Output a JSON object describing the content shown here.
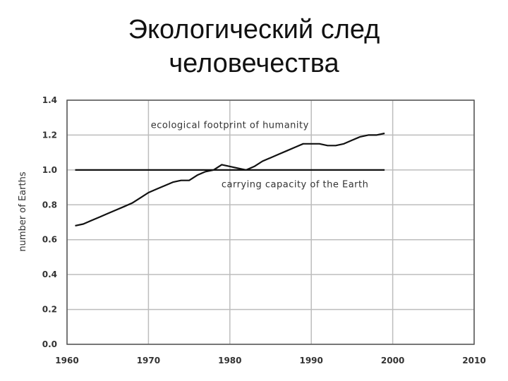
{
  "slide": {
    "title_line1": "Экологический след",
    "title_line2": "человечества"
  },
  "chart_data": {
    "type": "line",
    "title": "",
    "xlabel": "",
    "ylabel": "number of Earths",
    "xlim": [
      1960,
      2010
    ],
    "ylim": [
      0.0,
      1.4
    ],
    "x_ticks": [
      "1960",
      "1970",
      "1980",
      "1990",
      "2000",
      "2010"
    ],
    "y_ticks": [
      "0.0",
      "0.2",
      "0.4",
      "0.6",
      "0.8",
      "1.0",
      "1.2",
      "1.4"
    ],
    "grid": true,
    "annotations": [
      {
        "text": "ecological footprint of humanity",
        "x": 1980,
        "y": 1.24
      },
      {
        "text": "carrying capacity of the Earth",
        "x": 1988,
        "y": 0.9
      }
    ],
    "series": [
      {
        "x": [
          1961,
          1962,
          1963,
          1964,
          1965,
          1966,
          1967,
          1968,
          1969,
          1970,
          1971,
          1972,
          1973,
          1974,
          1975,
          1976,
          1977,
          1978,
          1979,
          1980,
          1981,
          1982,
          1983,
          1984,
          1985,
          1986,
          1987,
          1988,
          1989,
          1990,
          1991,
          1992,
          1993,
          1994,
          1995,
          1996,
          1997,
          1998,
          1999
        ],
        "y": [
          0.68,
          0.69,
          0.71,
          0.73,
          0.75,
          0.77,
          0.79,
          0.81,
          0.84,
          0.87,
          0.89,
          0.91,
          0.93,
          0.94,
          0.94,
          0.97,
          0.99,
          1.0,
          1.03,
          1.02,
          1.01,
          1.0,
          1.02,
          1.05,
          1.07,
          1.09,
          1.11,
          1.13,
          1.15,
          1.15,
          1.15,
          1.14,
          1.14,
          1.15,
          1.17,
          1.19,
          1.2,
          1.2,
          1.21
        ],
        "color": "#111111"
      },
      {
        "x": [
          1961,
          1999
        ],
        "y": [
          1.0,
          1.0
        ],
        "color": "#111111"
      }
    ]
  }
}
